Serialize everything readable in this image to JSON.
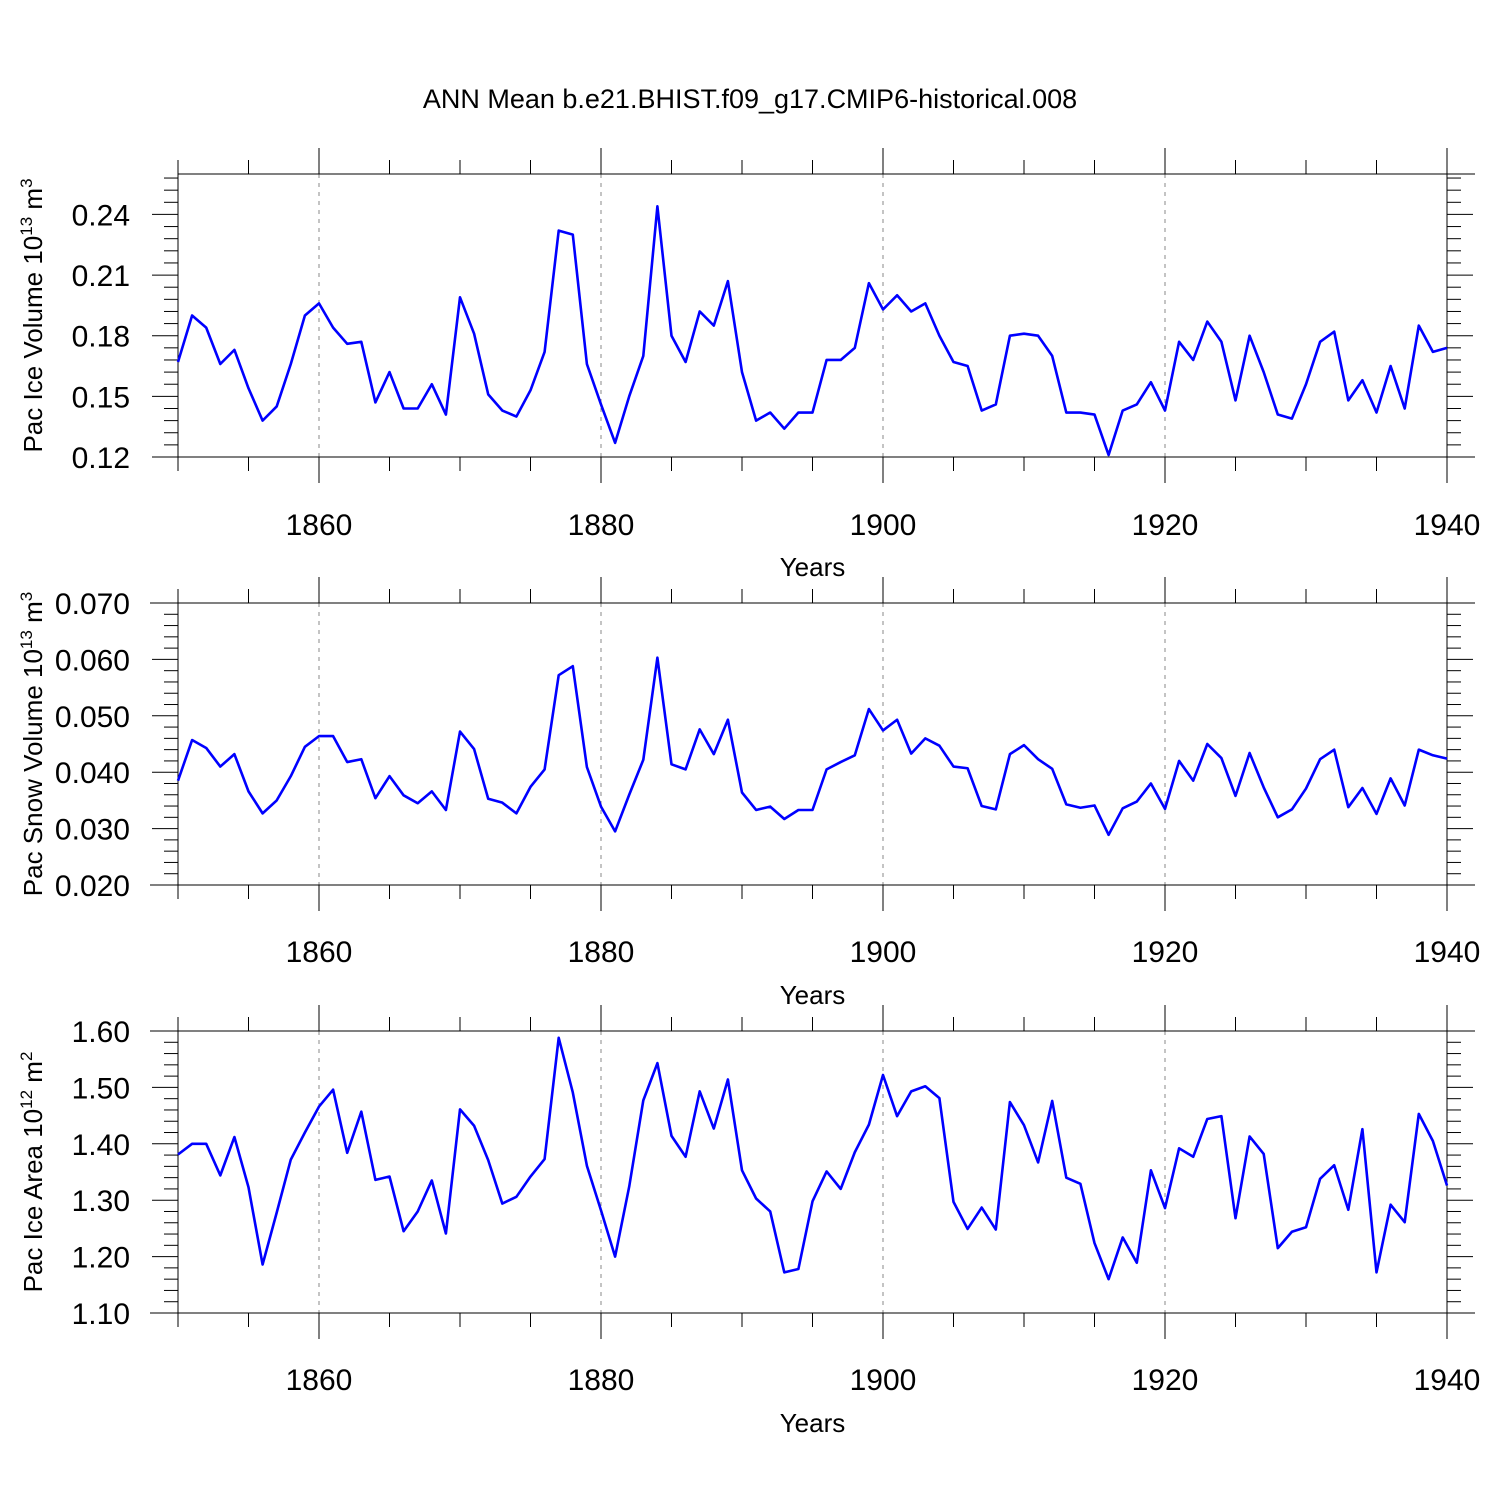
{
  "title": "ANN Mean b.e21.BHIST.f09_g17.CMIP6-historical.008",
  "colors": {
    "line": "#0000ff",
    "axis": "#000000",
    "grid": "#888888"
  },
  "chart_data": [
    {
      "type": "line",
      "name": "pac-ice-volume",
      "ylabel_main": "Pac Ice Volume 10",
      "ylabel_exp": "13",
      "ylabel_unit": " m",
      "ylabel_unit_exp": "3",
      "xlabel": "Years",
      "xlim": [
        1850,
        1940
      ],
      "ylim": [
        0.12,
        0.26
      ],
      "xticks": [
        1860,
        1880,
        1900,
        1920,
        1940
      ],
      "xtick_labels": [
        "1860",
        "1880",
        "1900",
        "1920",
        "1940"
      ],
      "yticks": [
        0.12,
        0.15,
        0.18,
        0.21,
        0.24
      ],
      "ytick_labels": [
        "0.12",
        "0.15",
        "0.18",
        "0.21",
        "0.24"
      ],
      "x_start": 1850,
      "values": [
        0.167,
        0.19,
        0.184,
        0.166,
        0.173,
        0.154,
        0.138,
        0.145,
        0.166,
        0.19,
        0.196,
        0.184,
        0.176,
        0.177,
        0.147,
        0.162,
        0.144,
        0.144,
        0.156,
        0.141,
        0.199,
        0.181,
        0.151,
        0.143,
        0.14,
        0.153,
        0.172,
        0.232,
        0.23,
        0.166,
        0.146,
        0.127,
        0.15,
        0.17,
        0.244,
        0.18,
        0.167,
        0.192,
        0.185,
        0.207,
        0.162,
        0.138,
        0.142,
        0.134,
        0.142,
        0.142,
        0.168,
        0.168,
        0.174,
        0.206,
        0.193,
        0.2,
        0.192,
        0.196,
        0.18,
        0.167,
        0.165,
        0.143,
        0.146,
        0.18,
        0.181,
        0.18,
        0.17,
        0.142,
        0.142,
        0.141,
        0.121,
        0.143,
        0.146,
        0.157,
        0.143,
        0.177,
        0.168,
        0.187,
        0.177,
        0.148,
        0.18,
        0.162,
        0.141,
        0.139,
        0.156,
        0.177,
        0.182,
        0.148,
        0.158,
        0.142,
        0.165,
        0.144,
        0.185,
        0.172,
        0.174
      ]
    },
    {
      "type": "line",
      "name": "pac-snow-volume",
      "ylabel_main": "Pac Snow Volume 10",
      "ylabel_exp": "13",
      "ylabel_unit": " m",
      "ylabel_unit_exp": "3",
      "xlabel": "Years",
      "xlim": [
        1850,
        1940
      ],
      "ylim": [
        0.02,
        0.07
      ],
      "xticks": [
        1860,
        1880,
        1900,
        1920,
        1940
      ],
      "xtick_labels": [
        "1860",
        "1880",
        "1900",
        "1920",
        "1940"
      ],
      "yticks": [
        0.02,
        0.03,
        0.04,
        0.05,
        0.06,
        0.07
      ],
      "ytick_labels": [
        "0.020",
        "0.030",
        "0.040",
        "0.050",
        "0.060",
        "0.070"
      ],
      "x_start": 1850,
      "values": [
        0.0385,
        0.0457,
        0.0443,
        0.041,
        0.0432,
        0.0366,
        0.0327,
        0.035,
        0.0393,
        0.0445,
        0.0464,
        0.0464,
        0.0418,
        0.0423,
        0.0354,
        0.0393,
        0.0359,
        0.0345,
        0.0366,
        0.0333,
        0.0472,
        0.0441,
        0.0353,
        0.0346,
        0.0327,
        0.0374,
        0.0405,
        0.0572,
        0.0588,
        0.0409,
        0.0339,
        0.0295,
        0.036,
        0.0422,
        0.0603,
        0.0414,
        0.0405,
        0.0476,
        0.0432,
        0.0493,
        0.0364,
        0.0333,
        0.0339,
        0.0317,
        0.0333,
        0.0333,
        0.0405,
        0.0418,
        0.043,
        0.0512,
        0.0474,
        0.0493,
        0.0433,
        0.046,
        0.0447,
        0.041,
        0.0407,
        0.034,
        0.0334,
        0.0432,
        0.0448,
        0.0423,
        0.0406,
        0.0343,
        0.0337,
        0.0341,
        0.0289,
        0.0336,
        0.0348,
        0.038,
        0.0335,
        0.042,
        0.0385,
        0.045,
        0.0425,
        0.0358,
        0.0434,
        0.0373,
        0.032,
        0.0334,
        0.0371,
        0.0423,
        0.044,
        0.0338,
        0.0372,
        0.0326,
        0.0389,
        0.0341,
        0.044,
        0.043,
        0.0424
      ]
    },
    {
      "type": "line",
      "name": "pac-ice-area",
      "ylabel_main": "Pac Ice Area 10",
      "ylabel_exp": "12",
      "ylabel_unit": " m",
      "ylabel_unit_exp": "2",
      "xlabel": "Years",
      "xlim": [
        1850,
        1940
      ],
      "ylim": [
        1.1,
        1.6
      ],
      "xticks": [
        1860,
        1880,
        1900,
        1920,
        1940
      ],
      "xtick_labels": [
        "1860",
        "1880",
        "1900",
        "1920",
        "1940"
      ],
      "yticks": [
        1.1,
        1.2,
        1.3,
        1.4,
        1.5,
        1.6
      ],
      "ytick_labels": [
        "1.10",
        "1.20",
        "1.30",
        "1.40",
        "1.50",
        "1.60"
      ],
      "x_start": 1850,
      "values": [
        1.381,
        1.4,
        1.4,
        1.344,
        1.412,
        1.323,
        1.186,
        1.278,
        1.372,
        1.42,
        1.466,
        1.496,
        1.384,
        1.457,
        1.336,
        1.342,
        1.245,
        1.28,
        1.335,
        1.241,
        1.461,
        1.432,
        1.371,
        1.294,
        1.306,
        1.342,
        1.373,
        1.588,
        1.491,
        1.361,
        1.282,
        1.2,
        1.324,
        1.477,
        1.543,
        1.414,
        1.377,
        1.493,
        1.427,
        1.514,
        1.353,
        1.303,
        1.28,
        1.172,
        1.178,
        1.298,
        1.351,
        1.32,
        1.385,
        1.434,
        1.522,
        1.449,
        1.493,
        1.502,
        1.481,
        1.297,
        1.249,
        1.287,
        1.248,
        1.474,
        1.433,
        1.367,
        1.476,
        1.34,
        1.329,
        1.224,
        1.16,
        1.234,
        1.189,
        1.353,
        1.286,
        1.392,
        1.377,
        1.444,
        1.449,
        1.268,
        1.413,
        1.382,
        1.215,
        1.244,
        1.252,
        1.338,
        1.362,
        1.283,
        1.426,
        1.172,
        1.292,
        1.261,
        1.453,
        1.405,
        1.326
      ]
    }
  ]
}
